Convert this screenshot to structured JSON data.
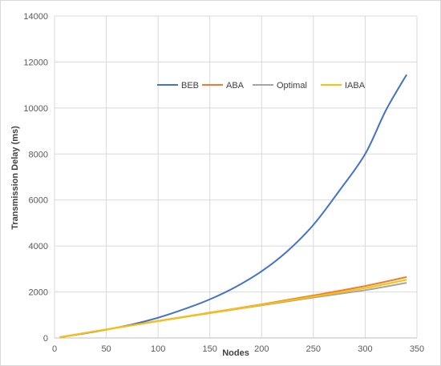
{
  "chart_data": {
    "type": "line",
    "title": "",
    "xlabel": "Nodes",
    "ylabel": "Transmission Delay (ms)",
    "xlim": [
      0,
      350
    ],
    "ylim": [
      0,
      14000
    ],
    "x_ticks": [
      0,
      50,
      100,
      150,
      200,
      250,
      300,
      350
    ],
    "y_ticks": [
      0,
      2000,
      4000,
      6000,
      8000,
      10000,
      12000,
      14000
    ],
    "grid": true,
    "legend_position": "top-right",
    "series": [
      {
        "name": "BEB",
        "color": "#4472C4",
        "x": [
          5,
          25,
          50,
          75,
          100,
          125,
          150,
          175,
          200,
          225,
          250,
          275,
          300,
          320,
          340
        ],
        "y": [
          30,
          170,
          360,
          590,
          880,
          1250,
          1680,
          2220,
          2900,
          3780,
          4920,
          6400,
          8000,
          9900,
          11450
        ]
      },
      {
        "name": "ABA",
        "color": "#ED7D31",
        "x": [
          5,
          50,
          100,
          150,
          200,
          250,
          300,
          340
        ],
        "y": [
          30,
          370,
          740,
          1100,
          1460,
          1850,
          2260,
          2650
        ]
      },
      {
        "name": "Optimal",
        "color": "#A5A5A5",
        "x": [
          5,
          50,
          100,
          150,
          200,
          250,
          300,
          340
        ],
        "y": [
          30,
          370,
          730,
          1080,
          1420,
          1760,
          2080,
          2400
        ]
      },
      {
        "name": "IABA",
        "color": "#FFC000",
        "x": [
          5,
          50,
          100,
          150,
          200,
          250,
          300,
          340
        ],
        "y": [
          30,
          370,
          735,
          1090,
          1440,
          1800,
          2170,
          2530
        ]
      }
    ]
  }
}
